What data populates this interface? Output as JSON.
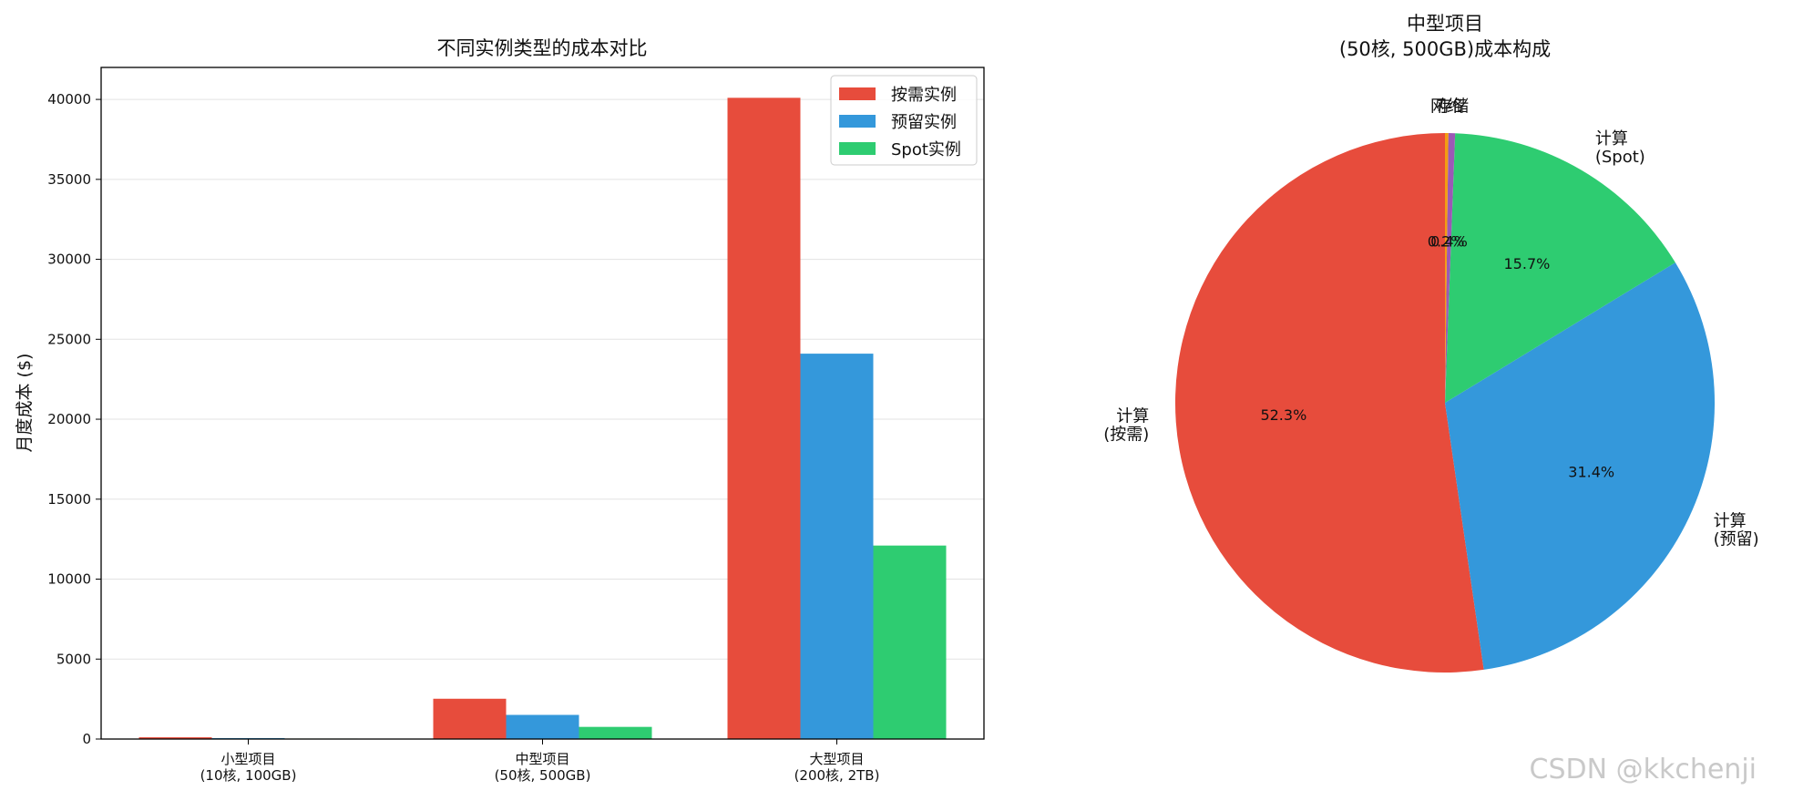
{
  "chart_data": [
    {
      "type": "bar",
      "title": "不同实例类型的成本对比",
      "ylabel": "月度成本 ($)",
      "ylim": [
        0,
        42000
      ],
      "yticks": [
        "0",
        "5000",
        "10000",
        "15000",
        "20000",
        "25000",
        "30000",
        "35000",
        "40000"
      ],
      "grid": "horizontal",
      "legend_position": "top-right",
      "categories": [
        {
          "name": "小型项目",
          "detail": "(10核, 100GB)"
        },
        {
          "name": "中型项目",
          "detail": "(50核, 500GB)"
        },
        {
          "name": "大型项目",
          "detail": "(200核, 2TB)"
        }
      ],
      "series": [
        {
          "name": "按需实例",
          "color": "#e74c3c",
          "values": [
            110,
            2520,
            40100
          ]
        },
        {
          "name": "预留实例",
          "color": "#3498db",
          "values": [
            60,
            1510,
            24100
          ]
        },
        {
          "name": "Spot实例",
          "color": "#2ecc71",
          "values": [
            30,
            760,
            12100
          ]
        }
      ]
    },
    {
      "type": "pie",
      "title_line1": "中型项目",
      "title_line2": "(50核, 500GB)成本构成",
      "start_angle_deg": 90,
      "counterclock": true,
      "slices": [
        {
          "label_line1": "计算",
          "label_line2": "(按需)",
          "percent": 52.3,
          "pct_text": "52.3%",
          "color": "#e74c3c"
        },
        {
          "label_line1": "计算",
          "label_line2": "(预留)",
          "percent": 31.4,
          "pct_text": "31.4%",
          "color": "#3498db"
        },
        {
          "label_line1": "计算",
          "label_line2": "(Spot)",
          "percent": 15.7,
          "pct_text": "15.7%",
          "color": "#2ecc71"
        },
        {
          "label_line1": "存储",
          "label_line2": "",
          "percent": 0.4,
          "pct_text": "0.4%",
          "color": "#9b59b6"
        },
        {
          "label_line1": "网络",
          "label_line2": "",
          "percent": 0.2,
          "pct_text": "0.2%",
          "color": "#f39c12"
        }
      ]
    }
  ],
  "watermark": "CSDN @kkchenji"
}
